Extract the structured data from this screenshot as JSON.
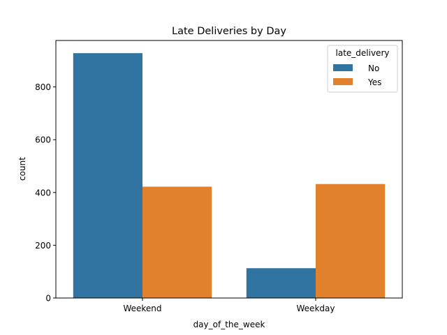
{
  "chart_data": {
    "type": "bar",
    "title": "Late Deliveries by Day",
    "xlabel": "day_of_the_week",
    "ylabel": "count",
    "categories": [
      "Weekend",
      "Weekday"
    ],
    "series": [
      {
        "name": "No",
        "values": [
          928,
          113
        ],
        "color": "#3274a1"
      },
      {
        "name": "Yes",
        "values": [
          422,
          432
        ],
        "color": "#e1812c"
      }
    ],
    "ylim": [
      0,
      976
    ],
    "yticks": [
      0,
      200,
      400,
      600,
      800
    ],
    "legend": {
      "title": "late_delivery",
      "placement": "top-right"
    },
    "grid": false
  }
}
